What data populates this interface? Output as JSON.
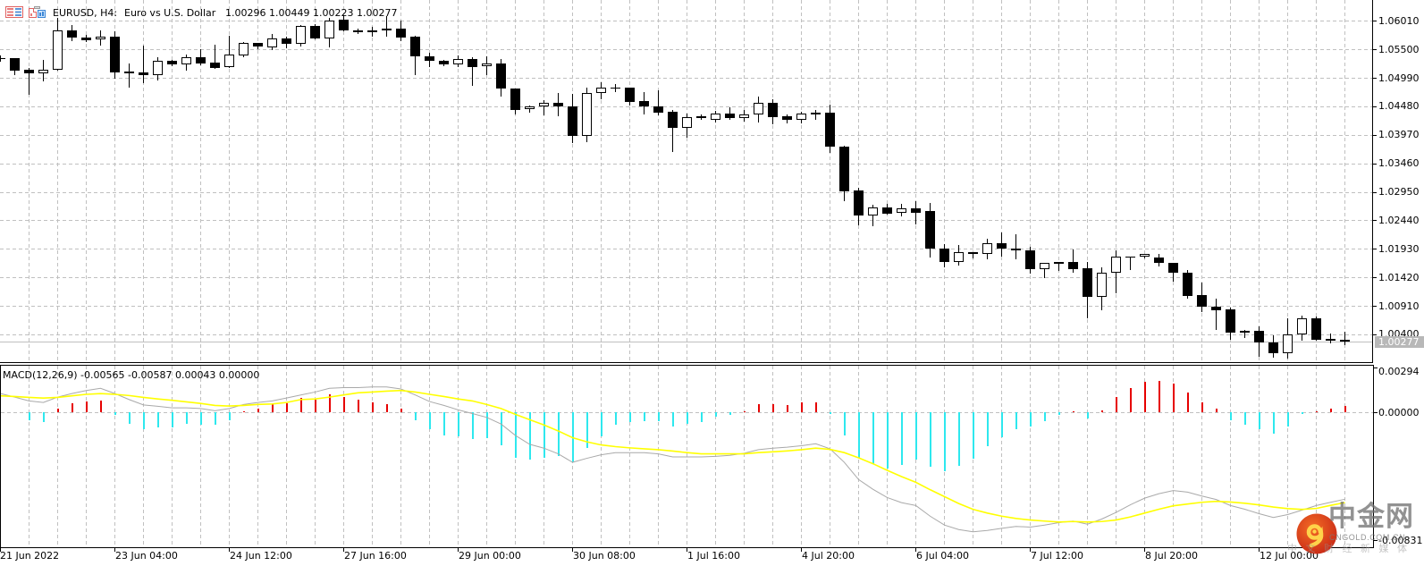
{
  "header": {
    "symbol": "EURUSD, H4:",
    "description": "Euro vs U.S. Dollar",
    "ohlc": "1.00296 1.00449 1.00223 1.00277",
    "icons": [
      "market-depth-icon",
      "one-click-trading-icon"
    ]
  },
  "colors": {
    "bull_body": "#ffffff",
    "bear_body": "#000000",
    "candle_outline": "#000000",
    "grid": "#c0c0c0",
    "bid_line": "#c0c0c0",
    "axis": "#000000",
    "macd_line": "#a9a9a9",
    "signal_line": "#ffff00",
    "hist_up": "#e60000",
    "hist_down": "#2ee8ee",
    "current_price_bg": "#b8b8b8",
    "current_price_text": "#ffffff"
  },
  "watermark": {
    "logo": "cngold-logo",
    "brand_cn": "中金网",
    "brand_en": "CNGOLD.COM.CN",
    "tagline": "中 文 财 经 新 媒 体"
  },
  "chart_data": [
    {
      "type": "candlestick",
      "title": "EURUSD, H4: Euro vs U.S. Dollar",
      "symbol": "EURUSD",
      "timeframe": "H4",
      "xlabel": "",
      "ylabel": "",
      "grid": true,
      "ylim": [
        0.99895,
        1.06383
      ],
      "current_price": 1.00277,
      "current_price_label": "1.00277",
      "last_ohlc": {
        "open": 1.00296,
        "high": 1.00449,
        "low": 1.00223,
        "close": 1.00277
      },
      "y_ticks": [
        {
          "label": "1.06010",
          "value": 1.0601
        },
        {
          "label": "1.05500",
          "value": 1.055
        },
        {
          "label": "1.04990",
          "value": 1.0499
        },
        {
          "label": "1.04480",
          "value": 1.0448
        },
        {
          "label": "1.03970",
          "value": 1.0397
        },
        {
          "label": "1.03460",
          "value": 1.0346
        },
        {
          "label": "1.02950",
          "value": 1.0295
        },
        {
          "label": "1.02440",
          "value": 1.0244
        },
        {
          "label": "1.01930",
          "value": 1.0193
        },
        {
          "label": "1.01420",
          "value": 1.0142
        },
        {
          "label": "1.00910",
          "value": 1.0091
        },
        {
          "label": "1.00400",
          "value": 1.004
        }
      ],
      "x_ticks": [
        {
          "label": "21 Jun 2022",
          "index": 0
        },
        {
          "label": "23 Jun 04:00",
          "index": 8
        },
        {
          "label": "24 Jun 12:00",
          "index": 16
        },
        {
          "label": "27 Jun 16:00",
          "index": 24
        },
        {
          "label": "29 Jun 00:00",
          "index": 32
        },
        {
          "label": "30 Jun 08:00",
          "index": 40
        },
        {
          "label": "1 Jul 16:00",
          "index": 48
        },
        {
          "label": "4 Jul 20:00",
          "index": 56
        },
        {
          "label": "6 Jul 04:00",
          "index": 64
        },
        {
          "label": "7 Jul 12:00",
          "index": 72
        },
        {
          "label": "8 Jul 20:00",
          "index": 80
        },
        {
          "label": "12 Jul 00:00",
          "index": 88
        }
      ],
      "candles_format": [
        "open",
        "high",
        "low",
        "close"
      ],
      "candles": [
        [
          1.05343,
          1.05391,
          1.05295,
          1.05327
        ],
        [
          1.05343,
          1.05343,
          1.05055,
          1.05119
        ],
        [
          1.0514,
          1.05167,
          1.04703,
          1.05066
        ],
        [
          1.05066,
          1.05316,
          1.04943,
          1.0514
        ],
        [
          1.0514,
          1.06063,
          1.0514,
          1.05834
        ],
        [
          1.05834,
          1.0593,
          1.05663,
          1.05706
        ],
        [
          1.05716,
          1.05759,
          1.05647,
          1.05663
        ],
        [
          1.05674,
          1.05839,
          1.05583,
          1.05727
        ],
        [
          1.05727,
          1.05823,
          1.04996,
          1.05092
        ],
        [
          1.05103,
          1.05247,
          1.04836,
          1.05071
        ],
        [
          1.05087,
          1.05572,
          1.04916,
          1.05034
        ],
        [
          1.05039,
          1.05359,
          1.04959,
          1.0529
        ],
        [
          1.0529,
          1.05316,
          1.0521,
          1.05226
        ],
        [
          1.05226,
          1.05412,
          1.0514,
          1.05359
        ],
        [
          1.05359,
          1.05503,
          1.05236,
          1.05252
        ],
        [
          1.05263,
          1.05583,
          1.05167,
          1.05172
        ],
        [
          1.05183,
          1.05743,
          1.05183,
          1.05407
        ],
        [
          1.05396,
          1.05626,
          1.0537,
          1.0561
        ],
        [
          1.0561,
          1.0561,
          1.05514,
          1.05556
        ],
        [
          1.0553,
          1.0577,
          1.05503,
          1.0569
        ],
        [
          1.0569,
          1.05732,
          1.0553,
          1.05594
        ],
        [
          1.05594,
          1.0593,
          1.05567,
          1.05914
        ],
        [
          1.05914,
          1.05946,
          1.0569,
          1.0569
        ],
        [
          1.0569,
          1.06063,
          1.05556,
          1.0602
        ],
        [
          1.06026,
          1.06106,
          1.05834,
          1.05834
        ],
        [
          1.05831,
          1.05866,
          1.05786,
          1.05815
        ],
        [
          1.05831,
          1.05903,
          1.05743,
          1.05815
        ],
        [
          1.05834,
          1.0609,
          1.05743,
          1.05866
        ],
        [
          1.05876,
          1.0601,
          1.05663,
          1.05716
        ],
        [
          1.05727,
          1.05743,
          1.0505,
          1.0537
        ],
        [
          1.0537,
          1.05434,
          1.05194,
          1.0529
        ],
        [
          1.0529,
          1.05306,
          1.0521,
          1.05236
        ],
        [
          1.05236,
          1.05396,
          1.05194,
          1.05327
        ],
        [
          1.05327,
          1.05354,
          1.04863,
          1.05183
        ],
        [
          1.05194,
          1.0537,
          1.0505,
          1.05247
        ],
        [
          1.05247,
          1.05327,
          1.04676,
          1.04794
        ],
        [
          1.04794,
          1.04794,
          1.04356,
          1.0442
        ],
        [
          1.04426,
          1.045,
          1.04383,
          1.04474
        ],
        [
          1.04474,
          1.04586,
          1.0434,
          1.04543
        ],
        [
          1.04543,
          1.04714,
          1.04314,
          1.04474
        ],
        [
          1.04474,
          1.04703,
          1.03834,
          1.03946
        ],
        [
          1.03946,
          1.0482,
          1.0386,
          1.04714
        ],
        [
          1.04714,
          1.04916,
          1.04623,
          1.0481
        ],
        [
          1.04815,
          1.04879,
          1.04756,
          1.04799
        ],
        [
          1.0481,
          1.0481,
          1.04516,
          1.04559
        ],
        [
          1.0457,
          1.0473,
          1.04346,
          1.04474
        ],
        [
          1.04474,
          1.04767,
          1.0433,
          1.04372
        ],
        [
          1.04383,
          1.0441,
          1.03674,
          1.0409
        ],
        [
          1.0409,
          1.04346,
          1.0394,
          1.04292
        ],
        [
          1.04303,
          1.0434,
          1.0426,
          1.04276
        ],
        [
          1.04234,
          1.04399,
          1.04207,
          1.04346
        ],
        [
          1.04346,
          1.04463,
          1.0426,
          1.04276
        ],
        [
          1.04276,
          1.0441,
          1.04223,
          1.0433
        ],
        [
          1.0433,
          1.0465,
          1.04212,
          1.04543
        ],
        [
          1.04543,
          1.04607,
          1.0417,
          1.04292
        ],
        [
          1.04298,
          1.0433,
          1.04196,
          1.04244
        ],
        [
          1.04244,
          1.04383,
          1.04196,
          1.04346
        ],
        [
          1.04367,
          1.0441,
          1.0425,
          1.0434
        ],
        [
          1.04367,
          1.04506,
          1.03663,
          1.03764
        ],
        [
          1.03759,
          1.0377,
          1.02799,
          1.02964
        ],
        [
          1.0297,
          1.03023,
          1.02372,
          1.02532
        ],
        [
          1.02532,
          1.02719,
          1.02356,
          1.02666
        ],
        [
          1.02666,
          1.0273,
          1.02564,
          1.02564
        ],
        [
          1.0257,
          1.0273,
          1.02532,
          1.0265
        ],
        [
          1.0265,
          1.02783,
          1.02383,
          1.0258
        ],
        [
          1.02607,
          1.02756,
          1.01796,
          1.0193
        ],
        [
          1.0193,
          1.0201,
          1.0161,
          1.017
        ],
        [
          1.017,
          1.01994,
          1.01652,
          1.01866
        ],
        [
          1.01866,
          1.01866,
          1.0177,
          1.01844
        ],
        [
          1.01844,
          1.02106,
          1.01754,
          1.02036
        ],
        [
          1.02036,
          1.02223,
          1.01807,
          1.0193
        ],
        [
          1.0193,
          1.02186,
          1.01754,
          1.01898
        ],
        [
          1.01898,
          1.01967,
          1.01503,
          1.01572
        ],
        [
          1.01572,
          1.01674,
          1.01423,
          1.01674
        ],
        [
          1.0169,
          1.0169,
          1.01556,
          1.01668
        ],
        [
          1.0169,
          1.01919,
          1.01519,
          1.01572
        ],
        [
          1.01578,
          1.017,
          1.00703,
          1.01076
        ],
        [
          1.01076,
          1.01599,
          1.00852,
          1.01498
        ],
        [
          1.01498,
          1.01903,
          1.01156,
          1.01786
        ],
        [
          1.01783,
          1.01799,
          1.01572,
          1.01799
        ],
        [
          1.01786,
          1.01834,
          1.0177,
          1.01834
        ],
        [
          1.0177,
          1.01834,
          1.01636,
          1.01674
        ],
        [
          1.01674,
          1.01674,
          1.01354,
          1.01498
        ],
        [
          1.01498,
          1.01546,
          1.0105,
          1.01092
        ],
        [
          1.01098,
          1.01327,
          1.0081,
          1.0089
        ],
        [
          1.009,
          1.01039,
          1.005,
          1.00836
        ],
        [
          1.00847,
          1.00879,
          1.00319,
          1.00436
        ],
        [
          1.00463,
          1.00479,
          1.00346,
          1.00436
        ],
        [
          1.00463,
          1.00543,
          1.0001,
          1.0025
        ],
        [
          1.0026,
          1.00383,
          0.99999,
          1.00068
        ],
        [
          1.00068,
          1.00692,
          0.99983,
          1.00399
        ],
        [
          1.00399,
          1.0074,
          1.00303,
          1.00687
        ],
        [
          1.00687,
          1.00719,
          1.00303,
          1.00303
        ],
        [
          1.00314,
          1.0042,
          1.0025,
          1.00292
        ],
        [
          1.00296,
          1.00449,
          1.00223,
          1.00277
        ]
      ]
    },
    {
      "type": "bar",
      "title": "MACD(12,26,9)",
      "label": "MACD(12,26,9) -0.00565 -0.00587 0.00043 0.00000",
      "current_values": {
        "macd": -0.00565,
        "signal": -0.00587,
        "hist_up": 0.00043,
        "hist_down": 0.0
      },
      "xlabel": "",
      "ylabel": "",
      "grid": true,
      "ylim": [
        -0.0088,
        0.00306
      ],
      "y_ticks": [
        {
          "label": "0.00294",
          "value": 0.00294
        },
        {
          "label": "0.00000",
          "value": 0.0
        },
        {
          "label": "-0.00831",
          "value": -0.00831
        }
      ],
      "series": [
        {
          "name": "Histogram",
          "type": "bar",
          "colors": {
            "positive": "#e60000",
            "negative": "#2ee8ee"
          },
          "values": [
            0,
            0,
            -0.00052,
            -0.00062,
            0.00025,
            0.00058,
            0.0007,
            0.00078,
            -0.00019,
            -0.00076,
            -0.00111,
            -0.00097,
            -0.00097,
            -0.00076,
            -0.00078,
            -0.00082,
            -0.00052,
            6e-05,
            0.00025,
            0.00052,
            0.00058,
            0.00093,
            0.00083,
            0.00117,
            0.00099,
            0.00083,
            0.00064,
            0.00052,
            0.00025,
            -0.00052,
            -0.00111,
            -0.0015,
            -0.00159,
            -0.00173,
            -0.00169,
            -0.00214,
            -0.00296,
            -0.00305,
            -0.00296,
            -0.00282,
            -0.00325,
            -0.00231,
            -0.00159,
            -0.00078,
            -0.00062,
            -0.00057,
            -0.00057,
            -0.00092,
            -0.00072,
            -0.00061,
            -0.00031,
            -0.00017,
            8e-05,
            0.00054,
            0.00051,
            0.00048,
            0.00062,
            0.00066,
            -0.00012,
            -0.00153,
            -0.00293,
            -0.00338,
            -0.00367,
            -0.00342,
            -0.00307,
            -0.00352,
            -0.00381,
            -0.00346,
            -0.00299,
            -0.0022,
            -0.0016,
            -0.00109,
            -0.00095,
            -0.0006,
            -0.00019,
            6e-05,
            -0.00042,
            0.00012,
            0.00097,
            0.00156,
            0.002,
            0.00206,
            0.00187,
            0.00128,
            0.00064,
            0.00026,
            -0.00054,
            -0.00078,
            -0.00108,
            -0.00136,
            -0.00092,
            -0.0001,
            6e-05,
            0.00025,
            0.00043
          ]
        },
        {
          "name": "MACD",
          "type": "line",
          "color": "#a9a9a9",
          "values": [
            0.00122,
            0.00099,
            0.00074,
            0.00064,
            0.00099,
            0.00122,
            0.00142,
            0.00156,
            0.00122,
            0.00083,
            0.00048,
            0.00039,
            0.00029,
            0.00029,
            0.00025,
            0.0001,
            0.00025,
            0.00051,
            0.00064,
            0.00074,
            0.00093,
            0.00113,
            0.00132,
            0.00156,
            0.00161,
            0.00161,
            0.00165,
            0.00165,
            0.00152,
            0.00113,
            0.0007,
            0.00045,
            0.00016,
            -8e-05,
            -0.00033,
            -0.00076,
            -0.0015,
            -0.00208,
            -0.00233,
            -0.0027,
            -0.00325,
            -0.00299,
            -0.00276,
            -0.00262,
            -0.00262,
            -0.00262,
            -0.0027,
            -0.0029,
            -0.0029,
            -0.0029,
            -0.00286,
            -0.0028,
            -0.00266,
            -0.00243,
            -0.00233,
            -0.00227,
            -0.00217,
            -0.00204,
            -0.00237,
            -0.00325,
            -0.00437,
            -0.005,
            -0.00554,
            -0.00587,
            -0.00606,
            -0.00675,
            -0.00733,
            -0.00762,
            -0.00777,
            -0.00768,
            -0.00754,
            -0.00742,
            -0.00746,
            -0.00733,
            -0.00717,
            -0.00707,
            -0.00727,
            -0.00694,
            -0.00651,
            -0.00601,
            -0.00558,
            -0.00529,
            -0.00509,
            -0.00519,
            -0.00544,
            -0.00567,
            -0.00606,
            -0.0063,
            -0.00659,
            -0.00684,
            -0.00665,
            -0.00636,
            -0.00606,
            -0.00585,
            -0.00565
          ]
        },
        {
          "name": "Signal",
          "type": "line",
          "color": "#ffff00",
          "values": [
            0.00107,
            0.00103,
            0.00097,
            0.00093,
            0.00097,
            0.00107,
            0.00117,
            0.00122,
            0.00117,
            0.00109,
            0.00097,
            0.00087,
            0.00078,
            0.00068,
            0.00058,
            0.00045,
            0.00041,
            0.00045,
            0.00051,
            0.00054,
            0.00064,
            0.00083,
            0.00087,
            0.00099,
            0.00113,
            0.00127,
            0.00132,
            0.00138,
            0.00142,
            0.00132,
            0.00117,
            0.00103,
            0.00087,
            0.00074,
            0.00051,
            0.00025,
            -0.00013,
            -0.00048,
            -0.00082,
            -0.00121,
            -0.00165,
            -0.00192,
            -0.00212,
            -0.00223,
            -0.00231,
            -0.00237,
            -0.00243,
            -0.00252,
            -0.00262,
            -0.0027,
            -0.0027,
            -0.0027,
            -0.0027,
            -0.00262,
            -0.00257,
            -0.00251,
            -0.00243,
            -0.00233,
            -0.00241,
            -0.00262,
            -0.00296,
            -0.00334,
            -0.00377,
            -0.00418,
            -0.00455,
            -0.00503,
            -0.00548,
            -0.00593,
            -0.00631,
            -0.00655,
            -0.00675,
            -0.0069,
            -0.007,
            -0.00707,
            -0.00713,
            -0.0071,
            -0.00713,
            -0.0071,
            -0.007,
            -0.0068,
            -0.00655,
            -0.0063,
            -0.00608,
            -0.00596,
            -0.00585,
            -0.00579,
            -0.00583,
            -0.00591,
            -0.00602,
            -0.00616,
            -0.00626,
            -0.00631,
            -0.00625,
            -0.00605,
            -0.00587
          ]
        }
      ]
    }
  ]
}
